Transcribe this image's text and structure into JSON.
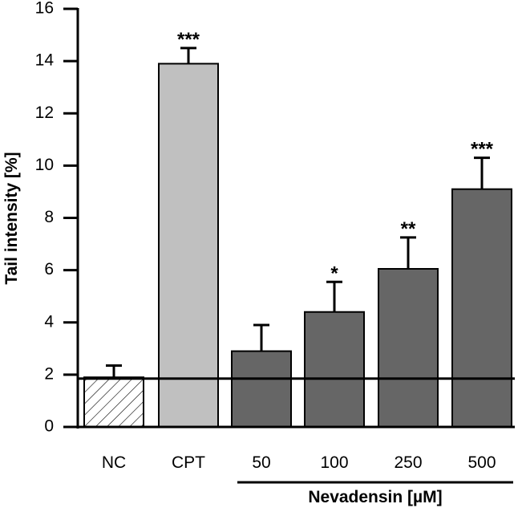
{
  "chart_data": {
    "type": "bar",
    "title": "",
    "xlabel": "",
    "ylabel": "Tail intensity [%]",
    "ylim": [
      0,
      16
    ],
    "yticks": [
      0,
      2,
      4,
      6,
      8,
      10,
      12,
      14,
      16
    ],
    "ytick_labels": [
      "0",
      "2",
      "4",
      "6",
      "8",
      "10",
      "12",
      "14",
      "16"
    ],
    "categories": [
      "NC",
      "CPT",
      "50",
      "100",
      "250",
      "500"
    ],
    "values": [
      1.9,
      13.9,
      2.9,
      4.4,
      6.05,
      9.1
    ],
    "errors": [
      0.45,
      0.6,
      1.0,
      1.15,
      1.2,
      1.2
    ],
    "significance": [
      "",
      "***",
      "",
      "*",
      "**",
      "***"
    ],
    "bar_styles": [
      "hatched",
      "light-gray",
      "dark-gray",
      "dark-gray",
      "dark-gray",
      "dark-gray"
    ],
    "colors": {
      "hatched_fill": "#ffffff",
      "light_gray": "#c0c0c0",
      "dark_gray": "#666666",
      "axis": "#000000"
    },
    "reference_line": 1.85,
    "group": {
      "label": "Nevadensin [µM]",
      "categories": [
        "50",
        "100",
        "250",
        "500"
      ]
    }
  }
}
